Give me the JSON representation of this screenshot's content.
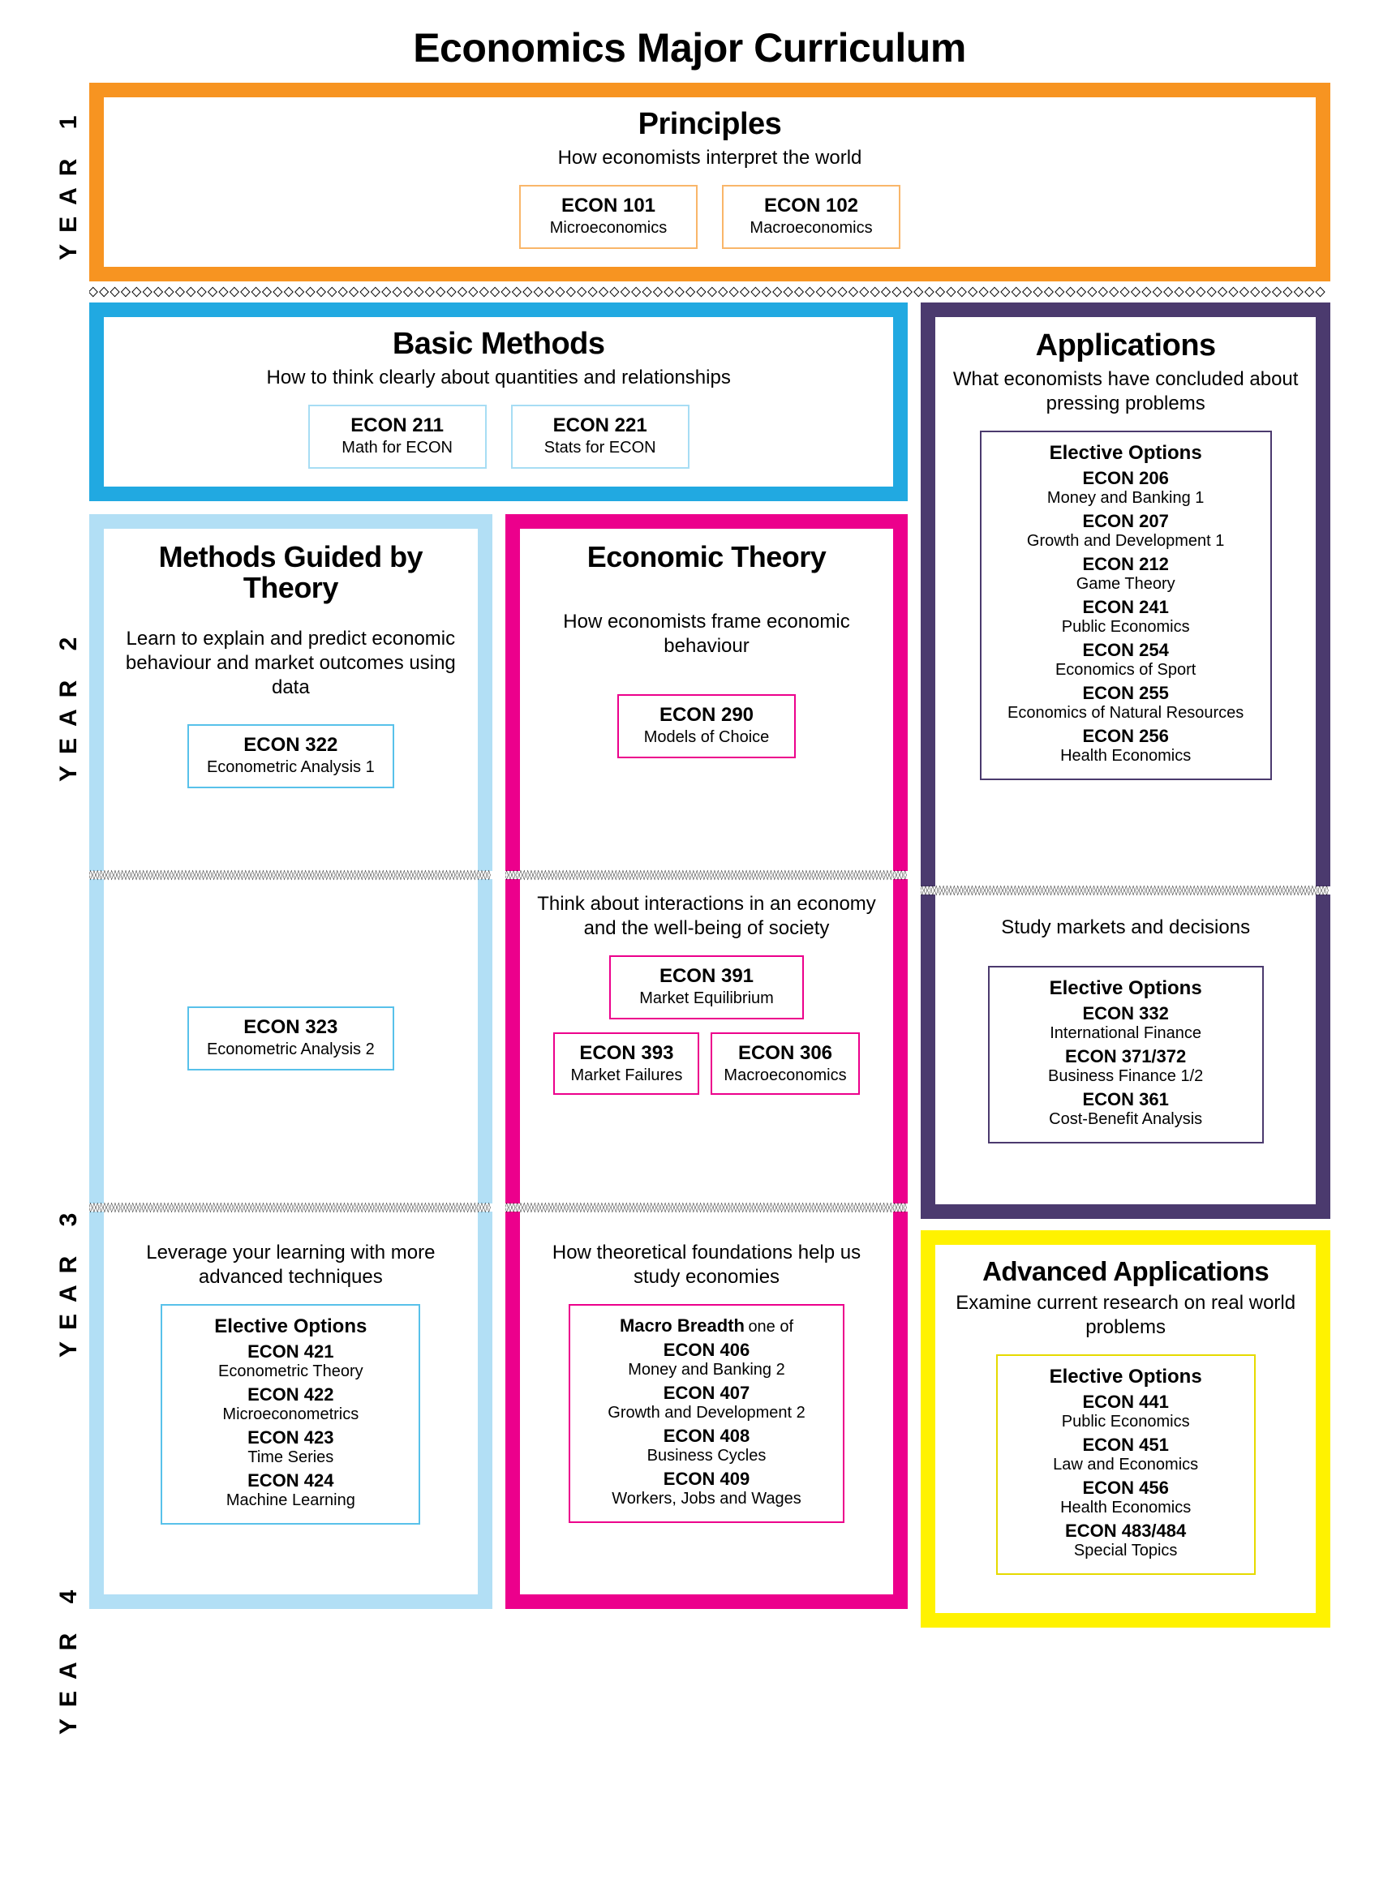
{
  "title": "Economics Major Curriculum",
  "colors": {
    "orange": "#f79421",
    "orange_light": "#f9b66a",
    "cyan": "#21a9e1",
    "cyan_light": "#a7ddf4",
    "lightblue": "#b2dff5",
    "lightblue_border": "#58c1ea",
    "magenta": "#ec008c",
    "purple": "#4b3a6e",
    "purple_light": "#8976a6",
    "yellow": "#fff200",
    "yellow_light": "#fff200"
  },
  "years": {
    "y1": "YEAR 1",
    "y2": "YEAR 2",
    "y3": "YEAR 3",
    "y4": "YEAR 4"
  },
  "principles": {
    "title": "Principles",
    "sub": "How economists interpret the world",
    "courses": [
      {
        "code": "ECON 101",
        "name": "Microeconomics"
      },
      {
        "code": "ECON 102",
        "name": "Macroeconomics"
      }
    ]
  },
  "basic_methods": {
    "title": "Basic Methods",
    "sub": "How to think clearly about quantities and relationships",
    "courses": [
      {
        "code": "ECON 211",
        "name": "Math for ECON"
      },
      {
        "code": "ECON 221",
        "name": "Stats for ECON"
      }
    ]
  },
  "methods_theory": {
    "title": "Methods Guided by Theory",
    "sub": "Learn to explain and predict economic behaviour and market outcomes using data",
    "y2_course": {
      "code": "ECON 322",
      "name": "Econometric Analysis 1"
    },
    "y3_course": {
      "code": "ECON 323",
      "name": "Econometric Analysis 2"
    },
    "y4_sub": "Leverage your learning with more advanced techniques",
    "y4_elective_title": "Elective Options",
    "y4_electives": [
      {
        "code": "ECON 421",
        "name": "Econometric Theory"
      },
      {
        "code": "ECON 422",
        "name": "Microeconometrics"
      },
      {
        "code": "ECON 423",
        "name": "Time Series"
      },
      {
        "code": "ECON 424",
        "name": "Machine Learning"
      }
    ]
  },
  "econ_theory": {
    "title": "Economic Theory",
    "sub": "How economists frame economic behaviour",
    "y2_course": {
      "code": "ECON 290",
      "name": "Models of Choice"
    },
    "y3_sub": "Think about interactions in an economy and the well-being of society",
    "y3_courses_top": {
      "code": "ECON 391",
      "name": "Market Equilibrium"
    },
    "y3_courses_bottom": [
      {
        "code": "ECON 393",
        "name": "Market Failures"
      },
      {
        "code": "ECON 306",
        "name": "Macroeconomics"
      }
    ],
    "y4_sub": "How theoretical foundations help us study economies",
    "y4_macro_title": "Macro Breadth",
    "y4_macro_suffix": "one of",
    "y4_electives": [
      {
        "code": "ECON 406",
        "name": "Money and Banking 2"
      },
      {
        "code": "ECON 407",
        "name": "Growth and Development 2"
      },
      {
        "code": "ECON 408",
        "name": "Business Cycles"
      },
      {
        "code": "ECON 409",
        "name": "Workers, Jobs and Wages"
      }
    ]
  },
  "applications": {
    "title": "Applications",
    "sub": "What economists have concluded about pressing problems",
    "y2_elective_title": "Elective Options",
    "y2_electives": [
      {
        "code": "ECON 206",
        "name": "Money and Banking 1"
      },
      {
        "code": "ECON 207",
        "name": "Growth and Development 1"
      },
      {
        "code": "ECON 212",
        "name": "Game Theory"
      },
      {
        "code": "ECON 241",
        "name": "Public Economics"
      },
      {
        "code": "ECON 254",
        "name": "Economics of Sport"
      },
      {
        "code": "ECON 255",
        "name": "Economics of Natural Resources"
      },
      {
        "code": "ECON 256",
        "name": "Health Economics"
      }
    ],
    "y3_sub": "Study markets and decisions",
    "y3_elective_title": "Elective Options",
    "y3_electives": [
      {
        "code": "ECON 332",
        "name": "International Finance"
      },
      {
        "code": "ECON 371/372",
        "name": "Business Finance 1/2"
      },
      {
        "code": "ECON 361",
        "name": "Cost-Benefit Analysis"
      }
    ]
  },
  "adv_applications": {
    "title": "Advanced Applications",
    "sub": "Examine current research on real world problems",
    "elective_title": "Elective Options",
    "electives": [
      {
        "code": "ECON 441",
        "name": "Public Economics"
      },
      {
        "code": "ECON 451",
        "name": "Law and Economics"
      },
      {
        "code": "ECON 456",
        "name": "Health Economics"
      },
      {
        "code": "ECON 483/484",
        "name": "Special Topics"
      }
    ]
  }
}
